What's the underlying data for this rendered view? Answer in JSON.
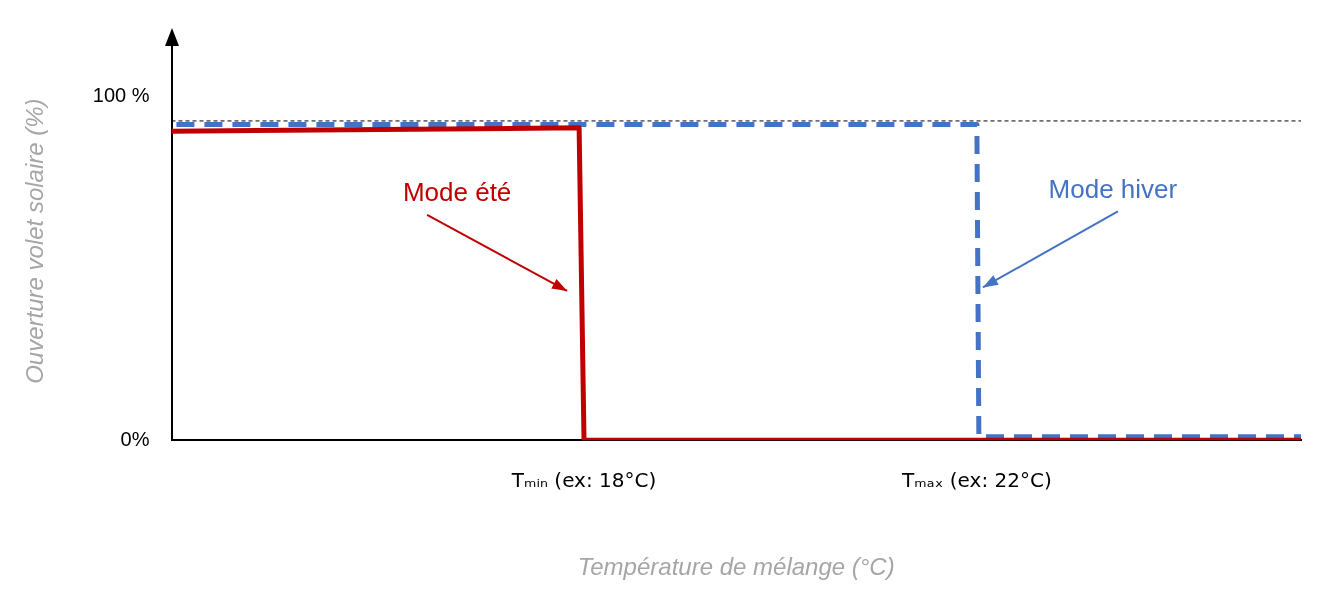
{
  "chart_data": {
    "type": "line",
    "xlabel": "Température de mélange (°C)",
    "ylabel": "Ouverture volet solaire (%)",
    "xlim": [
      13.8,
      25.3
    ],
    "ylim": [
      0,
      116
    ],
    "xticks": [
      {
        "value": 18,
        "label": "Tₘᵢₙ (ex: 18°C)"
      },
      {
        "value": 22,
        "label": "Tₘₐₓ (ex: 22°C)"
      }
    ],
    "yticks": [
      {
        "value": 0,
        "label": "0%"
      },
      {
        "value": 100,
        "label": "100 %"
      }
    ],
    "series": [
      {
        "name": "Mode été",
        "color": "#c00000",
        "line_style": "solid",
        "x": [
          13.8,
          17.95,
          18.0,
          25.3
        ],
        "values": [
          90,
          91,
          0,
          0
        ]
      },
      {
        "name": "Mode hiver",
        "color": "#4472c4",
        "line_style": "dashed",
        "x": [
          13.85,
          22,
          22.02,
          25.3
        ],
        "values": [
          92,
          92,
          1,
          1
        ]
      }
    ],
    "ref_lines": [
      {
        "axis": "y",
        "value": 93,
        "color": "#000000",
        "line_style": "dashed"
      }
    ],
    "marker": "none",
    "legend": false,
    "grid": false
  }
}
